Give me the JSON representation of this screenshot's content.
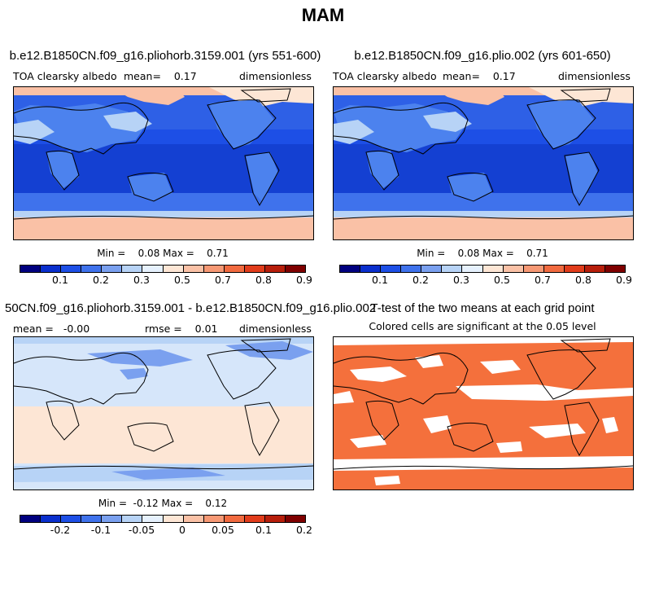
{
  "figure_title": "MAM",
  "panels": [
    {
      "title": "b.e12.B1850CN.f09_g16.pliohorb.3159.001 (yrs 551-600)",
      "left_label": "TOA clearsky albedo",
      "center_label": "mean=    0.17",
      "right_label": "dimensionless",
      "minmax": "Min =    0.08 Max =    0.71",
      "colorbar_ticks": [
        "0.1",
        "0.2",
        "0.3",
        "0.5",
        "0.7",
        "0.8",
        "0.9"
      ]
    },
    {
      "title": "b.e12.B1850CN.f09_g16.plio.002 (yrs 601-650)",
      "left_label": "TOA clearsky albedo",
      "center_label": "mean=    0.17",
      "right_label": "dimensionless",
      "minmax": "Min =    0.08 Max =    0.71",
      "colorbar_ticks": [
        "0.1",
        "0.2",
        "0.3",
        "0.5",
        "0.7",
        "0.8",
        "0.9"
      ]
    },
    {
      "title": "50CN.f09_g16.pliohorb.3159.001 - b.e12.B1850CN.f09_g16.plio.002",
      "left_label": "mean =   -0.00",
      "center_label": "rmse =    0.01",
      "right_label": "dimensionless",
      "minmax": "Min =  -0.12 Max =    0.12",
      "colorbar_ticks": [
        "-0.2",
        "-0.1",
        "-0.05",
        "0",
        "0.05",
        "0.1",
        "0.2"
      ]
    },
    {
      "title": "T-test of the two means at each grid point",
      "subtitle": "Colored cells are significant at the 0.05 level"
    }
  ],
  "colorbar_colors": [
    "#00007f",
    "#0a2fcd",
    "#1d4fe6",
    "#3f72ec",
    "#7aa0ef",
    "#b7d3f6",
    "#e6f1fd",
    "#fde6d5",
    "#fac1a6",
    "#f69874",
    "#f16a3f",
    "#e13c1b",
    "#b71e0b",
    "#7f0000"
  ],
  "colors": {
    "deep_ocean": "#1440d2",
    "mid_ocean": "#2e60e6",
    "land": "#4c82ee",
    "snow": "#e6f1fd",
    "polar": "#fac1a6",
    "diff_pos": "#fde6d5",
    "diff_neg": "#d6e6fa",
    "ttest": "#f4703c"
  }
}
